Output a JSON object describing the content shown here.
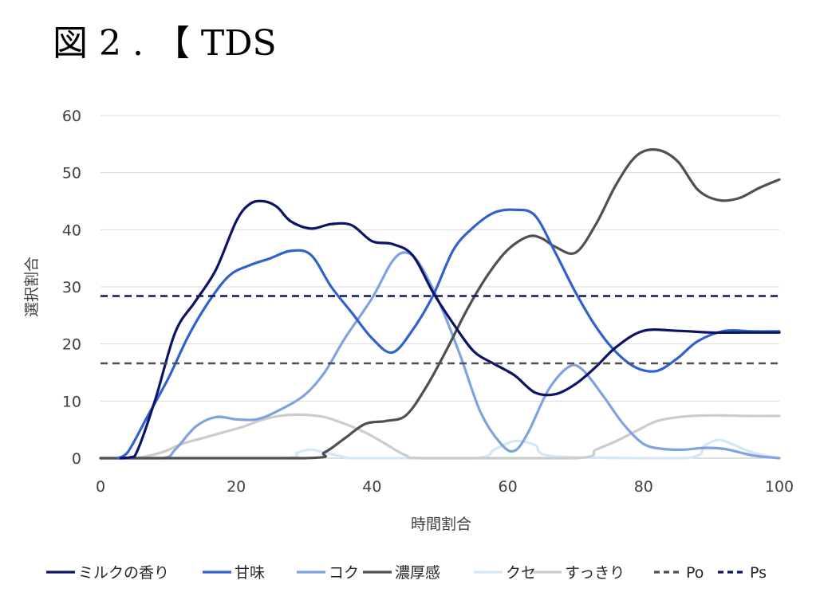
{
  "figure_title": "図 2 . 【 TDS",
  "chart_data": {
    "type": "line",
    "title": "",
    "xlabel": "時間割合",
    "ylabel": "選択割合",
    "xlim": [
      0,
      100
    ],
    "ylim": [
      0,
      60
    ],
    "x_ticks": [
      0,
      20,
      40,
      60,
      80,
      100
    ],
    "y_ticks": [
      0,
      10,
      20,
      30,
      40,
      50,
      60
    ],
    "grid": "horizontal",
    "legend_position": "bottom",
    "series": [
      {
        "name": "ミルクの香り",
        "color": "#0d1466",
        "dash": "solid",
        "x": [
          3,
          5,
          8,
          11,
          14,
          17,
          20,
          22,
          24,
          26,
          28,
          31,
          34,
          37,
          40,
          43,
          46,
          49,
          52,
          55,
          58,
          61,
          64,
          67,
          70,
          73,
          76,
          80,
          85,
          90,
          95,
          100
        ],
        "y": [
          0,
          0.3,
          10,
          22,
          27.5,
          33,
          41.5,
          44.5,
          45,
          44,
          41.5,
          40.2,
          41,
          40.8,
          38,
          37.5,
          35.5,
          29,
          23.5,
          18.7,
          16.5,
          14.5,
          11.5,
          11.2,
          13,
          16,
          19.5,
          22.3,
          22.3,
          22,
          22,
          22
        ]
      },
      {
        "name": "甘味",
        "color": "#2f62cc",
        "dash": "solid",
        "x": [
          2.5,
          4,
          7,
          10,
          13,
          16,
          19,
          22,
          25,
          28,
          31,
          34,
          37,
          40,
          43,
          46,
          49,
          52,
          55,
          58,
          61,
          64,
          67,
          70,
          73,
          76,
          79,
          82,
          85,
          88,
          92,
          96,
          100
        ],
        "y": [
          0,
          1,
          7.5,
          14,
          21.5,
          27.5,
          32,
          33.8,
          35,
          36.3,
          35.6,
          30,
          25.5,
          21,
          18.5,
          22.5,
          28.5,
          36.5,
          40.5,
          43,
          43.5,
          42.5,
          36,
          29,
          23,
          18.5,
          15.8,
          15.3,
          17.5,
          20.5,
          22.3,
          22.2,
          22.2
        ]
      },
      {
        "name": "コク",
        "color": "#7fa3de",
        "dash": "solid",
        "x": [
          0,
          9,
          11,
          14,
          17,
          20,
          23,
          26,
          30,
          33,
          36,
          40,
          43,
          45,
          47,
          50,
          53,
          56,
          59,
          61,
          63,
          66,
          69,
          71,
          74,
          77,
          80,
          83,
          86,
          89,
          92,
          96,
          100
        ],
        "y": [
          0,
          0,
          1.5,
          5.5,
          7.2,
          6.8,
          6.8,
          8.2,
          11,
          15,
          21,
          28,
          34.5,
          36,
          34,
          27,
          18,
          8,
          2.5,
          1.3,
          4.5,
          12,
          16,
          15.5,
          11,
          6,
          2.5,
          1.6,
          1.5,
          1.8,
          1.6,
          0.5,
          0
        ]
      },
      {
        "name": "濃厚感",
        "color": "#505050",
        "dash": "solid",
        "x": [
          0,
          30,
          33,
          36,
          39,
          42,
          45,
          48,
          51,
          54,
          57,
          60,
          63,
          65,
          67,
          70,
          73,
          76,
          79,
          82,
          85,
          88,
          91,
          94,
          97,
          100
        ],
        "y": [
          0,
          0,
          1,
          3.5,
          6,
          6.5,
          7.5,
          12.5,
          19,
          26,
          32,
          36.5,
          38.8,
          38.5,
          37,
          36,
          41,
          48,
          53,
          54,
          52,
          47,
          45.2,
          45.5,
          47.3,
          48.8
        ]
      },
      {
        "name": "クセ",
        "color": "#d5e6f7",
        "dash": "solid",
        "x": [
          0,
          26,
          29,
          31,
          33,
          36,
          38,
          55,
          58,
          61,
          64,
          67,
          86,
          89,
          91,
          93,
          96,
          100
        ],
        "y": [
          0,
          0,
          1,
          1.5,
          1,
          0.2,
          0,
          0,
          1.5,
          3,
          2.3,
          0.3,
          0,
          2.2,
          3.2,
          2.5,
          1,
          0
        ]
      },
      {
        "name": "すっきり",
        "color": "#cccccc",
        "dash": "solid",
        "x": [
          0,
          5,
          9,
          12,
          15,
          18,
          21,
          24,
          27,
          30,
          33,
          36,
          39,
          42,
          45,
          48,
          70,
          73,
          76,
          79,
          82,
          86,
          90,
          95,
          100
        ],
        "y": [
          0,
          0,
          1,
          2.5,
          3.5,
          4.5,
          5.5,
          6.8,
          7.5,
          7.6,
          7.2,
          6,
          4.5,
          2.5,
          0.5,
          0,
          0,
          1.5,
          3,
          4.8,
          6.5,
          7.3,
          7.5,
          7.4,
          7.4
        ]
      },
      {
        "name": "Po",
        "color": "#505050",
        "dash": "dashed",
        "x": [
          0,
          100
        ],
        "y": [
          16.6,
          16.6
        ]
      },
      {
        "name": "Ps",
        "color": "#0d1466",
        "dash": "dashed",
        "x": [
          0,
          100
        ],
        "y": [
          28.4,
          28.4
        ]
      }
    ]
  }
}
